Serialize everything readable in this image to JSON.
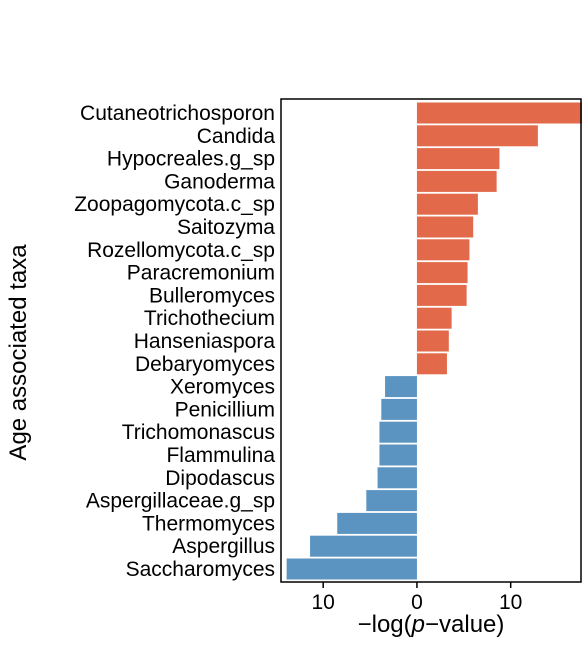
{
  "chart_data": {
    "type": "bar",
    "orientation": "horizontal",
    "title": "",
    "xlabel": "−log(p−value)",
    "ylabel": "Age associated taxa",
    "xticks": [
      {
        "value": -10,
        "label": "10"
      },
      {
        "value": 0,
        "label": "0"
      },
      {
        "value": 10,
        "label": "10"
      }
    ],
    "xlim": [
      -14.5,
      17.5
    ],
    "grid": false,
    "legend": "none",
    "colors": {
      "positive": "#E2694A",
      "negative": "#5B94C0"
    },
    "categories": [
      "Cutaneotrichosporon",
      "Candida",
      "Hypocreales.g_sp",
      "Ganoderma",
      "Zoopagomycota.c_sp",
      "Saitozyma",
      "Rozellomycota.c_sp",
      "Paracremonium",
      "Bulleromyces",
      "Trichothecium",
      "Hanseniaspora",
      "Debaryomyces",
      "Xeromyces",
      "Penicillium",
      "Trichomonascus",
      "Flammulina",
      "Dipodascus",
      "Aspergillaceae.g_sp",
      "Thermomyces",
      "Aspergillus",
      "Saccharomyces"
    ],
    "values": [
      17.6,
      12.9,
      8.8,
      8.5,
      6.5,
      6.0,
      5.6,
      5.4,
      5.3,
      3.7,
      3.4,
      3.2,
      -3.4,
      -3.8,
      -4.0,
      -4.0,
      -4.2,
      -5.4,
      -8.5,
      -11.4,
      -13.9
    ]
  }
}
